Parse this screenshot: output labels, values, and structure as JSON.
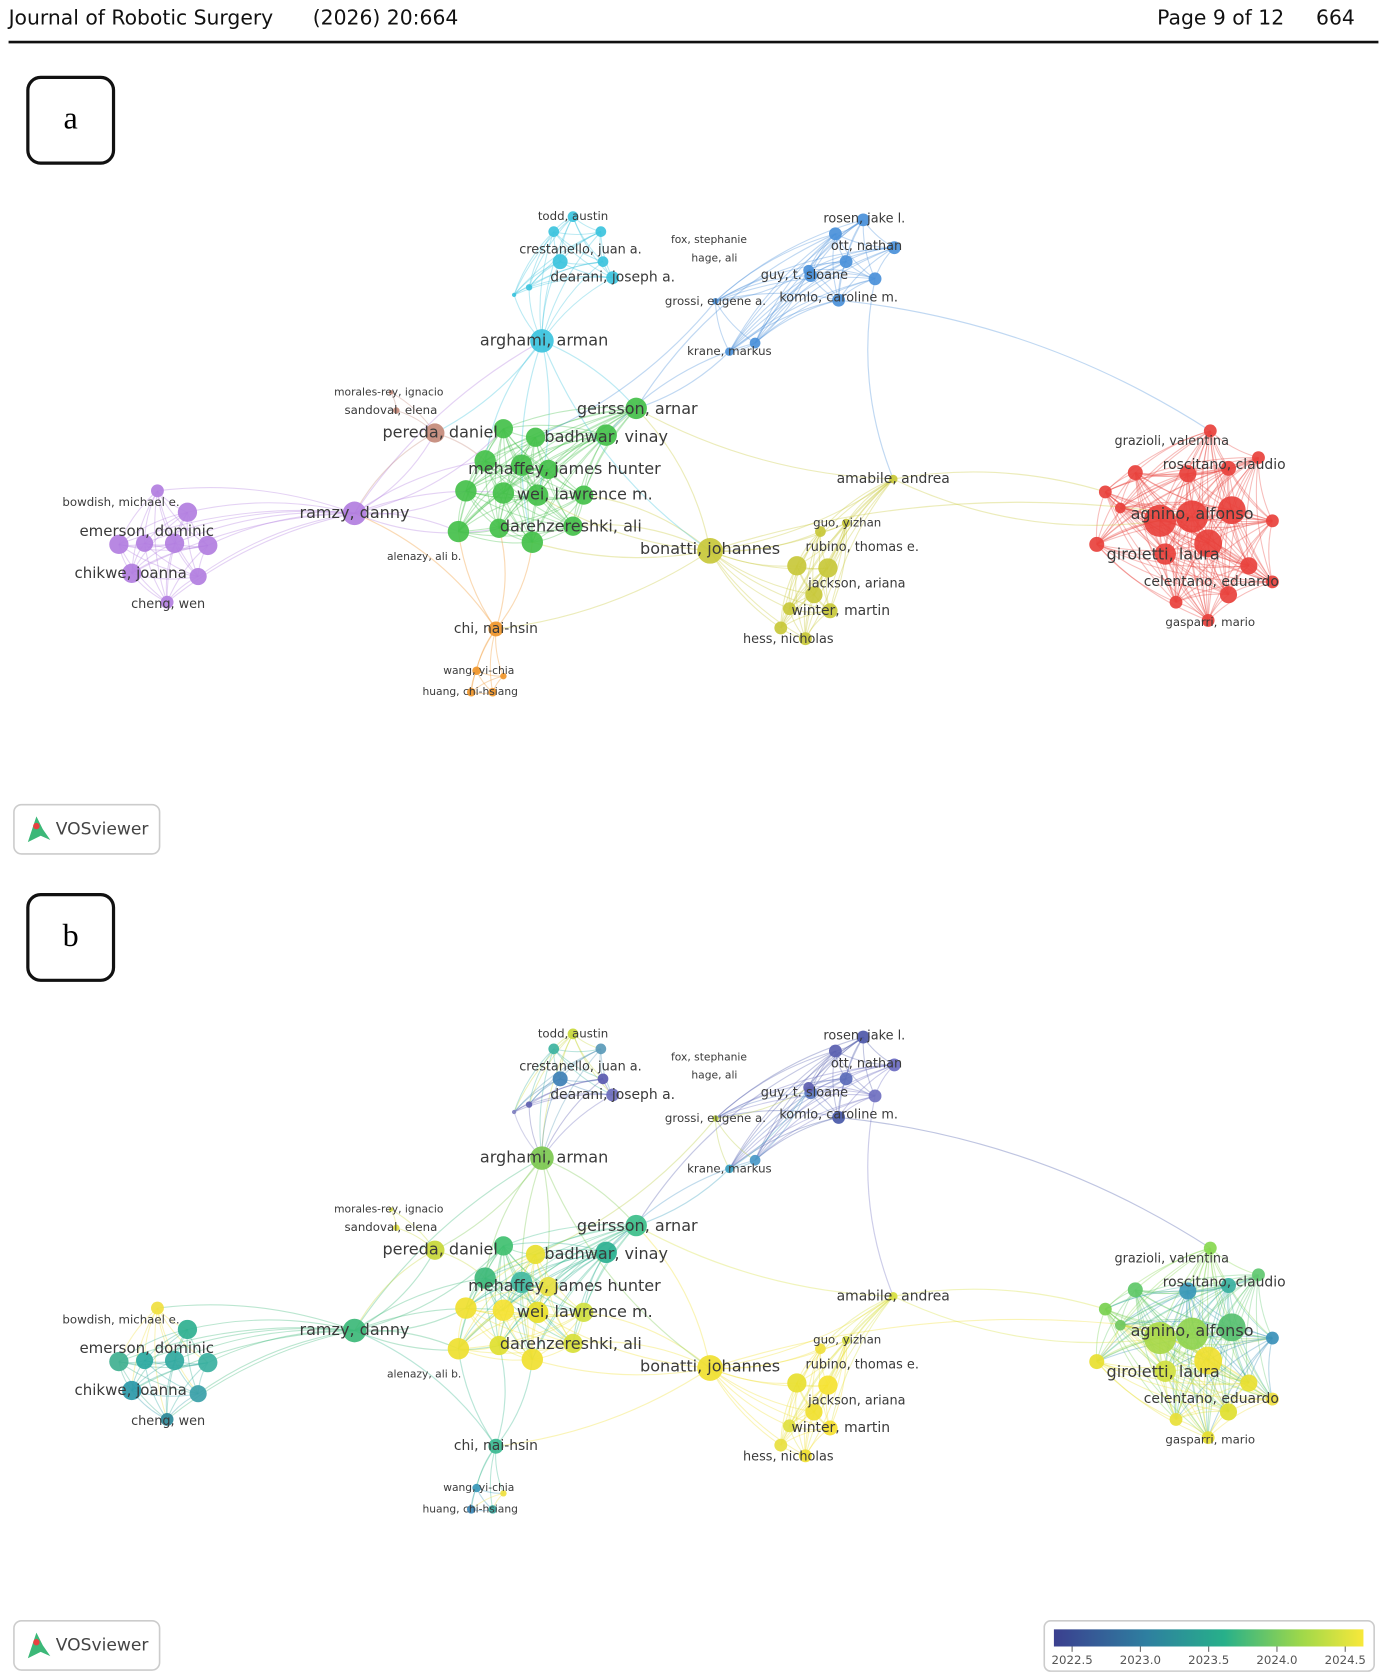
{
  "header": {
    "journal": "Journal of Robotic Surgery",
    "citation": "(2026) 20:664",
    "page": "Page 9 of 12",
    "article_number": "664"
  },
  "panel_a": {
    "label": "a",
    "watermark": "VOSviewer",
    "nodes": [
      "todd, austin",
      "crestanello, juan a.",
      "dearani, joseph a.",
      "fox, stephanie",
      "hage, ali",
      "grossi, eugene a.",
      "rosen, jake l.",
      "ott, nathan",
      "guy, t. sloane",
      "komlo, caroline m.",
      "krane, markus",
      "arghami, arman",
      "morales-rey, ignacio",
      "sandoval, elena",
      "pereda, daniel",
      "geirsson, arnar",
      "badhwar, vinay",
      "mehaffey, james hunter",
      "wei, lawrence m.",
      "darehzereshki, ali",
      "ramzy, danny",
      "alenazy, ali b.",
      "bowdish, michael e.",
      "emerson, dominic",
      "chikwe, joanna",
      "cheng, wen",
      "chi, nai-hsin",
      "wang, yi-chia",
      "huang, chi-hsiang",
      "amabile, andrea",
      "bonatti, johannes",
      "guo, yizhan",
      "rubino, thomas e.",
      "jackson, ariana",
      "winter, martin",
      "hess, nicholas",
      "grazioli, valentina",
      "roscitano, claudio",
      "agnino, alfonso",
      "giroletti, laura",
      "celentano, eduardo",
      "gasparri, mario"
    ]
  },
  "panel_b": {
    "label": "b",
    "watermark": "VOSviewer",
    "nodes": [
      "todd, austin",
      "crestanello, juan a.",
      "dearani, joseph a.",
      "fox, stephanie",
      "hage, ali",
      "grossi, eugene a.",
      "rosen, jake l.",
      "ott, nathan",
      "guy, t. sloane",
      "komlo, caroline m.",
      "krane, markus",
      "arghami, arman",
      "morales-rey, ignacio",
      "sandoval, elena",
      "pereda, daniel",
      "geirsson, arnar",
      "badhwar, vinay",
      "mehaffey, james hunter",
      "wei, lawrence m.",
      "darehzereshki, ali",
      "ramzy, danny",
      "alenazy, ali b.",
      "bowdish, michael e.",
      "emerson, dominic",
      "chikwe, joanna",
      "cheng, wen",
      "chi, nai-hsin",
      "wang, yi-chia",
      "huang, chi-hsiang",
      "amabile, andrea",
      "bonatti, johannes",
      "guo, yizhan",
      "rubino, thomas e.",
      "jackson, ariana",
      "winter, martin",
      "hess, nicholas",
      "grazioli, valentina",
      "roscitano, claudio",
      "agnino, alfonso",
      "giroletti, laura",
      "celentano, eduardo",
      "gasparri, mario"
    ],
    "colorbar": {
      "ticks": [
        {
          "value": 2022.5,
          "label": "2022.5"
        },
        {
          "value": 2023.0,
          "label": "2023.0"
        },
        {
          "value": 2023.5,
          "label": "2023.5"
        },
        {
          "value": 2024.0,
          "label": "2024.0"
        },
        {
          "value": 2024.5,
          "label": "2024.5"
        }
      ]
    }
  }
}
